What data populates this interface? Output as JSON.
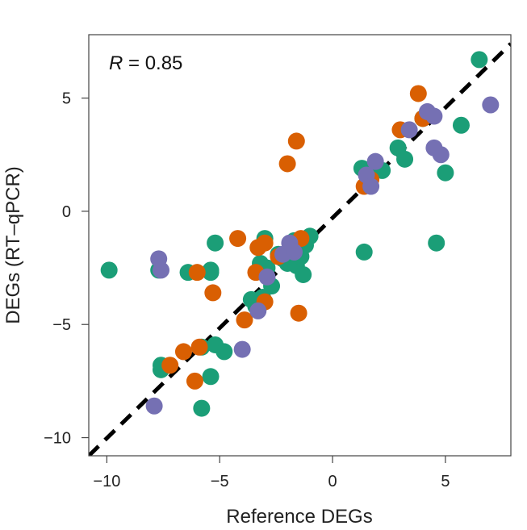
{
  "chart_data": {
    "type": "scatter",
    "title": "",
    "xlabel": "Reference DEGs",
    "ylabel": "DEGs (RT–qPCR)",
    "xlim": [
      -10.8,
      7.9
    ],
    "ylim": [
      -10.8,
      7.8
    ],
    "xticks": [
      -10,
      -5,
      0,
      5
    ],
    "yticks": [
      -10,
      -5,
      0,
      5
    ],
    "xtick_labels": [
      "−10",
      "−5",
      "0",
      "5"
    ],
    "ytick_labels": [
      "−10",
      "−5",
      "0",
      "5"
    ],
    "annotation": {
      "symbol": "R",
      "text": " = 0.85"
    },
    "fit_line": {
      "style": "dashed",
      "color": "#000000",
      "x": [
        -10.8,
        7.9
      ],
      "y": [
        -10.8,
        7.4
      ]
    },
    "grid": false,
    "series": [
      {
        "color": "#1b9e77",
        "points": [
          [
            -9.9,
            -2.6
          ],
          [
            -7.7,
            -2.6
          ],
          [
            -7.6,
            -6.8
          ],
          [
            -7.6,
            -7.0
          ],
          [
            -6.4,
            -2.7
          ],
          [
            -5.8,
            -6.0
          ],
          [
            -5.8,
            -8.7
          ],
          [
            -5.4,
            -7.3
          ],
          [
            -5.4,
            -2.6
          ],
          [
            -5.4,
            -2.7
          ],
          [
            -5.2,
            -1.4
          ],
          [
            -5.2,
            -5.9
          ],
          [
            -4.8,
            -6.2
          ],
          [
            -3.6,
            -3.9
          ],
          [
            -3.4,
            -4.2
          ],
          [
            -3.2,
            -2.3
          ],
          [
            -3.1,
            -3.8
          ],
          [
            -3.0,
            -1.2
          ],
          [
            -2.9,
            -2.5
          ],
          [
            -2.7,
            -3.3
          ],
          [
            -2.4,
            -1.9
          ],
          [
            -2.2,
            -2.1
          ],
          [
            -2.0,
            -2.3
          ],
          [
            -1.8,
            -1.6
          ],
          [
            -1.7,
            -1.3
          ],
          [
            -1.6,
            -2.4
          ],
          [
            -1.4,
            -2.0
          ],
          [
            -1.3,
            -2.8
          ],
          [
            -1.2,
            -1.5
          ],
          [
            -1.0,
            -1.1
          ],
          [
            1.3,
            1.9
          ],
          [
            1.4,
            -1.8
          ],
          [
            1.6,
            1.5
          ],
          [
            1.8,
            1.9
          ],
          [
            2.2,
            1.8
          ],
          [
            2.9,
            2.8
          ],
          [
            3.2,
            2.3
          ],
          [
            4.0,
            4.1
          ],
          [
            4.6,
            -1.4
          ],
          [
            5.0,
            1.7
          ],
          [
            5.7,
            3.8
          ],
          [
            6.5,
            6.7
          ]
        ]
      },
      {
        "color": "#d95f02",
        "points": [
          [
            -7.2,
            -6.8
          ],
          [
            -6.6,
            -6.2
          ],
          [
            -6.1,
            -7.5
          ],
          [
            -6.0,
            -2.7
          ],
          [
            -5.9,
            -6.0
          ],
          [
            -5.3,
            -3.6
          ],
          [
            -4.2,
            -1.2
          ],
          [
            -3.9,
            -4.8
          ],
          [
            -3.4,
            -2.7
          ],
          [
            -3.3,
            -1.6
          ],
          [
            -3.0,
            -1.4
          ],
          [
            -3.0,
            -4.0
          ],
          [
            -2.4,
            -2.0
          ],
          [
            -2.0,
            2.1
          ],
          [
            -1.6,
            3.1
          ],
          [
            -1.5,
            -4.5
          ],
          [
            -1.4,
            -1.2
          ],
          [
            1.4,
            1.1
          ],
          [
            1.6,
            1.2
          ],
          [
            1.7,
            1.4
          ],
          [
            3.0,
            3.6
          ],
          [
            3.8,
            5.2
          ],
          [
            4.0,
            4.1
          ]
        ]
      },
      {
        "color": "#7570b3",
        "points": [
          [
            -7.9,
            -8.6
          ],
          [
            -7.7,
            -2.1
          ],
          [
            -7.6,
            -2.6
          ],
          [
            -4.0,
            -6.1
          ],
          [
            -3.3,
            -4.4
          ],
          [
            -2.9,
            -2.9
          ],
          [
            -2.2,
            -1.9
          ],
          [
            -1.9,
            -1.4
          ],
          [
            -1.7,
            -1.8
          ],
          [
            1.5,
            1.6
          ],
          [
            1.7,
            1.1
          ],
          [
            1.9,
            2.2
          ],
          [
            3.4,
            3.6
          ],
          [
            4.2,
            4.4
          ],
          [
            4.5,
            4.2
          ],
          [
            4.5,
            2.8
          ],
          [
            4.8,
            2.5
          ],
          [
            7.0,
            4.7
          ]
        ]
      }
    ]
  }
}
